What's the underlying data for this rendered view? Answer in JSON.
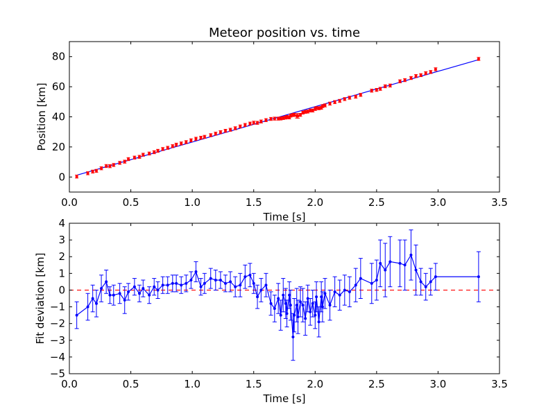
{
  "chart_data": [
    {
      "type": "scatter",
      "title": "Meteor position vs. time",
      "xlabel": "Time [s]",
      "ylabel": "Position [km]",
      "xlim": [
        0.0,
        3.5
      ],
      "ylim": [
        -10,
        90
      ],
      "xticks": [
        "0.0",
        "0.5",
        "1.0",
        "1.5",
        "2.0",
        "2.5",
        "3.0",
        "3.5"
      ],
      "yticks": [
        "0",
        "20",
        "40",
        "60",
        "80"
      ],
      "grid": false,
      "colors": {
        "points": "#ff0000",
        "fit": "#0000ff"
      },
      "fit_line": {
        "x": [
          0.06,
          3.33
        ],
        "y": [
          1.2,
          78.0
        ]
      },
      "series": [
        {
          "x": [
            0.06,
            0.15,
            0.19,
            0.22,
            0.26,
            0.3,
            0.33,
            0.36,
            0.41,
            0.45,
            0.48,
            0.53,
            0.57,
            0.6,
            0.65,
            0.69,
            0.72,
            0.76,
            0.8,
            0.84,
            0.87,
            0.91,
            0.95,
            0.99,
            1.03,
            1.07,
            1.1,
            1.15,
            1.19,
            1.23,
            1.27,
            1.31,
            1.35,
            1.39,
            1.43,
            1.47,
            1.5,
            1.53,
            1.56,
            1.6,
            1.64,
            1.67,
            1.7,
            1.72,
            1.74,
            1.76,
            1.77,
            1.79,
            1.8,
            1.82,
            1.83,
            1.85,
            1.86,
            1.88,
            1.9,
            1.92,
            1.94,
            1.96,
            1.98,
            2.0,
            2.01,
            2.03,
            2.05,
            2.06,
            2.08,
            2.12,
            2.16,
            2.2,
            2.24,
            2.28,
            2.33,
            2.37,
            2.46,
            2.5,
            2.53,
            2.57,
            2.61,
            2.69,
            2.73,
            2.78,
            2.82,
            2.86,
            2.9,
            2.94,
            2.98,
            3.33
          ],
          "y": [
            0.3,
            2.5,
            3.6,
            4.1,
            5.8,
            7.3,
            7.2,
            8.0,
            9.4,
            10.2,
            11.9,
            12.9,
            13.4,
            14.8,
            15.6,
            16.5,
            17.4,
            18.6,
            19.4,
            20.5,
            21.5,
            22.3,
            23.2,
            24.4,
            25.4,
            26.1,
            26.7,
            27.8,
            28.8,
            29.8,
            30.7,
            31.4,
            32.4,
            33.6,
            34.6,
            35.5,
            36.1,
            36.0,
            36.9,
            37.8,
            38.6,
            38.8,
            38.8,
            38.9,
            39.2,
            39.5,
            39.9,
            39.6,
            40.8,
            41.2,
            41.4,
            40.7,
            40.6,
            41.3,
            42.8,
            43.3,
            43.5,
            44.2,
            44.2,
            45.2,
            45.8,
            45.7,
            46.0,
            47.1,
            47.6,
            48.8,
            49.8,
            50.6,
            51.8,
            52.7,
            53.4,
            54.6,
            57.4,
            57.9,
            58.6,
            60.3,
            60.8,
            63.6,
            64.4,
            65.8,
            67.1,
            67.7,
            69.0,
            69.8,
            71.6,
            78.5
          ],
          "err": [
            1.0,
            1.0,
            1.0,
            1.0,
            1.0,
            1.0,
            1.0,
            1.0,
            1.0,
            1.0,
            1.0,
            1.0,
            1.0,
            1.0,
            1.0,
            1.0,
            1.0,
            1.0,
            1.0,
            1.0,
            1.0,
            1.0,
            1.0,
            1.0,
            1.0,
            1.0,
            1.0,
            1.0,
            1.0,
            1.0,
            1.0,
            1.0,
            1.0,
            1.0,
            1.0,
            1.0,
            1.0,
            1.0,
            1.0,
            1.0,
            1.0,
            1.0,
            1.0,
            1.0,
            1.0,
            1.0,
            1.0,
            1.0,
            1.0,
            1.0,
            1.0,
            1.5,
            1.5,
            1.0,
            1.0,
            1.0,
            1.0,
            1.0,
            1.0,
            1.0,
            1.0,
            1.0,
            1.0,
            1.0,
            1.0,
            1.0,
            1.0,
            1.0,
            1.0,
            1.0,
            1.0,
            1.0,
            1.0,
            1.0,
            1.0,
            1.0,
            1.0,
            1.0,
            1.0,
            1.0,
            1.0,
            1.0,
            1.0,
            1.0,
            1.0,
            1.0
          ]
        }
      ]
    },
    {
      "type": "line",
      "title": "",
      "xlabel": "Time [s]",
      "ylabel": "Fit deviation [km]",
      "xlim": [
        0.0,
        3.5
      ],
      "ylim": [
        -5,
        4
      ],
      "xticks": [
        "0.0",
        "0.5",
        "1.0",
        "1.5",
        "2.0",
        "2.5",
        "3.0",
        "3.5"
      ],
      "yticks": [
        "−5",
        "−4",
        "−3",
        "−2",
        "−1",
        "0",
        "1",
        "2",
        "3",
        "4"
      ],
      "grid": false,
      "colors": {
        "line": "#0000ff",
        "zero_line": "#ff0000"
      },
      "zero_line": 0,
      "series": [
        {
          "x": [
            0.06,
            0.15,
            0.19,
            0.22,
            0.26,
            0.3,
            0.33,
            0.36,
            0.41,
            0.45,
            0.48,
            0.53,
            0.57,
            0.6,
            0.65,
            0.69,
            0.72,
            0.76,
            0.8,
            0.84,
            0.87,
            0.91,
            0.95,
            0.99,
            1.03,
            1.07,
            1.1,
            1.15,
            1.19,
            1.23,
            1.27,
            1.31,
            1.35,
            1.39,
            1.43,
            1.47,
            1.5,
            1.53,
            1.56,
            1.6,
            1.64,
            1.67,
            1.7,
            1.72,
            1.74,
            1.76,
            1.77,
            1.79,
            1.8,
            1.82,
            1.83,
            1.85,
            1.86,
            1.88,
            1.9,
            1.92,
            1.94,
            1.96,
            1.98,
            2.0,
            2.01,
            2.03,
            2.05,
            2.06,
            2.08,
            2.12,
            2.16,
            2.2,
            2.24,
            2.28,
            2.33,
            2.37,
            2.46,
            2.5,
            2.53,
            2.57,
            2.61,
            2.69,
            2.73,
            2.78,
            2.82,
            2.86,
            2.9,
            2.94,
            2.98,
            3.33
          ],
          "y": [
            -1.5,
            -1.0,
            -0.5,
            -0.8,
            0.1,
            0.5,
            -0.3,
            -0.3,
            -0.2,
            -0.6,
            -0.1,
            0.2,
            -0.2,
            0.1,
            -0.3,
            0.2,
            0.0,
            0.3,
            0.3,
            0.4,
            0.4,
            0.3,
            0.4,
            0.6,
            1.1,
            0.2,
            0.4,
            0.7,
            0.6,
            0.6,
            0.4,
            0.5,
            0.2,
            0.3,
            0.8,
            0.9,
            0.4,
            -0.4,
            0.0,
            0.3,
            -0.8,
            -1.1,
            -0.5,
            -1.5,
            -0.3,
            -0.8,
            -1.4,
            -0.3,
            -0.9,
            -2.8,
            -1.5,
            -0.9,
            -1.6,
            -0.7,
            -0.9,
            -1.7,
            -0.5,
            -1.3,
            -0.8,
            -1.5,
            -0.4,
            -1.9,
            -0.4,
            -1.0,
            -0.2,
            -0.9,
            -0.1,
            -0.3,
            0.0,
            -0.1,
            0.3,
            0.7,
            0.4,
            0.6,
            1.6,
            1.2,
            1.7,
            1.6,
            1.5,
            2.1,
            1.2,
            0.5,
            0.2,
            0.5,
            0.8,
            0.8
          ],
          "err": [
            0.8,
            0.8,
            0.8,
            0.8,
            0.8,
            0.7,
            0.5,
            0.6,
            0.6,
            0.8,
            0.5,
            0.5,
            0.5,
            0.5,
            0.5,
            0.5,
            0.5,
            0.5,
            0.5,
            0.5,
            0.5,
            0.5,
            0.5,
            0.5,
            0.6,
            0.5,
            0.6,
            0.6,
            0.6,
            0.5,
            0.5,
            0.6,
            0.6,
            0.7,
            0.7,
            0.7,
            0.6,
            0.7,
            0.7,
            0.7,
            0.7,
            0.8,
            0.9,
            0.9,
            1.0,
            0.9,
            0.8,
            0.8,
            0.9,
            1.4,
            1.0,
            1.0,
            1.0,
            0.9,
            1.0,
            1.0,
            0.8,
            0.8,
            0.8,
            0.8,
            0.9,
            0.9,
            0.9,
            0.9,
            0.9,
            0.9,
            0.9,
            0.9,
            0.9,
            0.9,
            1.0,
            1.2,
            1.2,
            1.2,
            1.4,
            1.6,
            1.5,
            1.4,
            1.5,
            1.5,
            1.5,
            0.8,
            0.8,
            0.8,
            0.8,
            1.5
          ]
        }
      ]
    }
  ]
}
